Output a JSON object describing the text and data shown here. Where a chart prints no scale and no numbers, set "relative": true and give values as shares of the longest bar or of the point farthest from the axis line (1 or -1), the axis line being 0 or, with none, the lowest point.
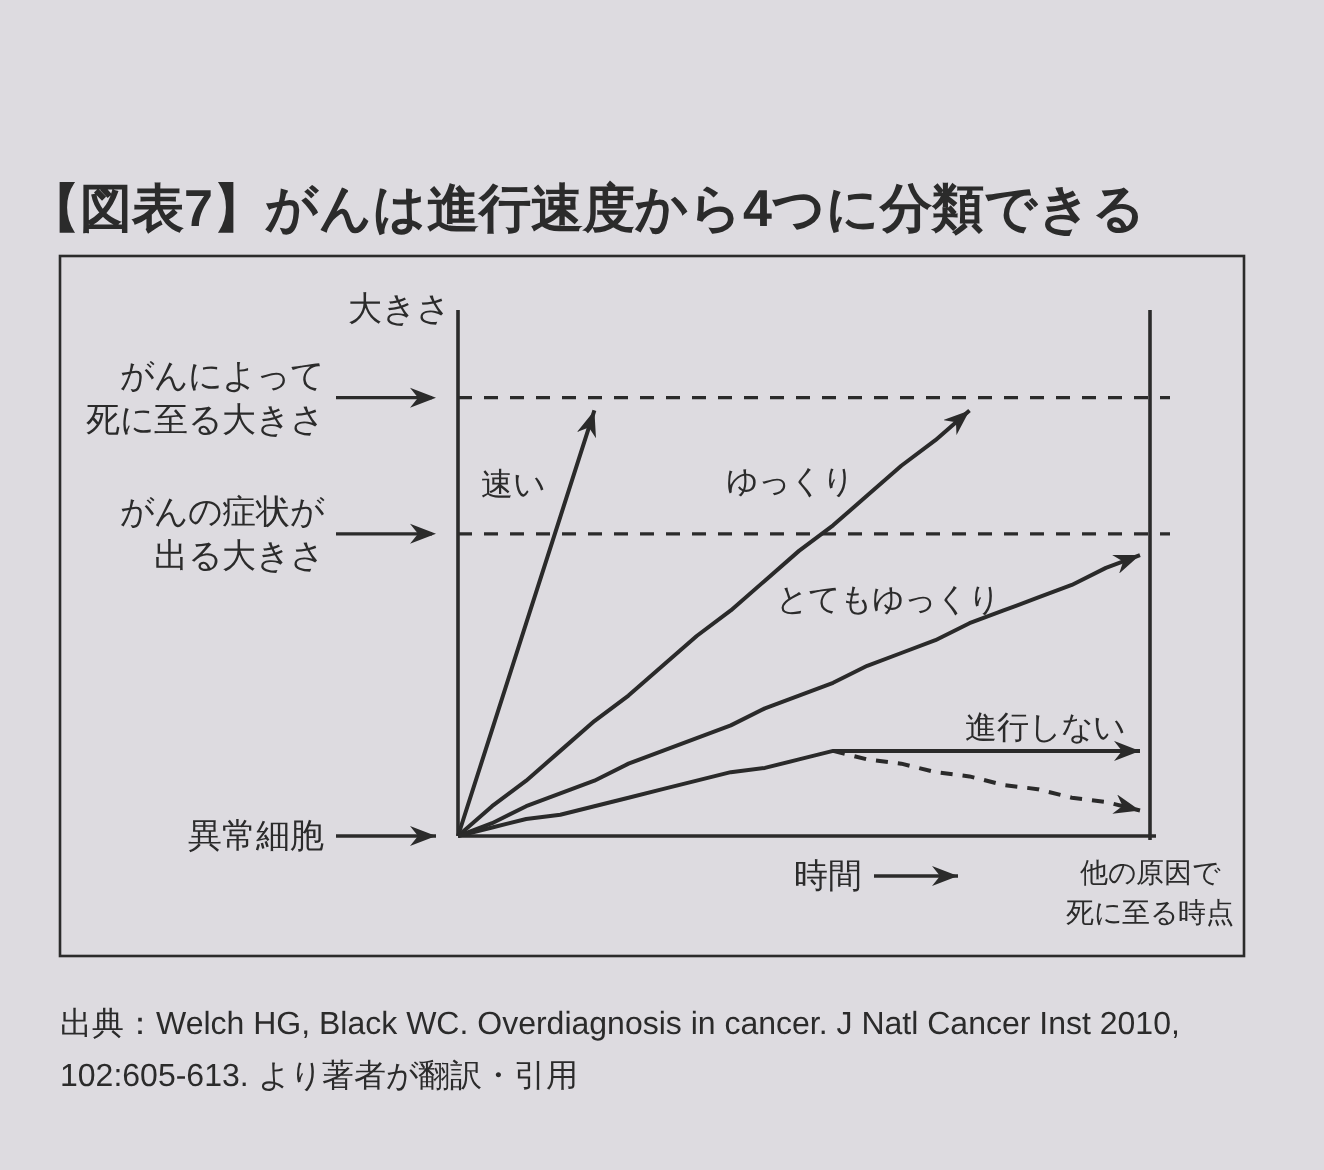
{
  "chart_data": {
    "type": "line",
    "title": "【図表7】がんは進行速度から4つに分類できる",
    "xlabel": "時間",
    "ylabel": "大きさ",
    "relative": true,
    "line_style": "solid",
    "categories": [
      null,
      null,
      null,
      null,
      null,
      null,
      null,
      null,
      null,
      null,
      null,
      null,
      null,
      null,
      null,
      null,
      null,
      null,
      null,
      null,
      null
    ],
    "series": [
      {
        "name": "速い",
        "color": "#2a2a2a",
        "values": [
          0,
          0.25,
          0.5,
          0.75,
          1,
          null,
          null,
          null,
          null,
          null,
          null,
          null,
          null,
          null,
          null,
          null,
          null,
          null,
          null,
          null,
          null
        ]
      },
      {
        "name": "ゆっくり",
        "color": "#2a2a2a",
        "values": [
          0,
          0.07,
          0.13,
          0.2,
          0.27,
          0.33,
          0.4,
          0.47,
          0.53,
          0.6,
          0.67,
          0.73,
          0.8,
          0.87,
          0.93,
          1,
          null,
          null,
          null,
          null,
          null
        ]
      },
      {
        "name": "とてもゆっくり",
        "color": "#2a2a2a",
        "values": [
          0,
          0.03,
          0.07,
          0.1,
          0.13,
          0.17,
          0.2,
          0.23,
          0.26,
          0.3,
          0.33,
          0.36,
          0.4,
          0.43,
          0.46,
          0.5,
          0.53,
          0.56,
          0.59,
          0.63,
          0.66
        ]
      },
      {
        "name": "進行しない",
        "color": "#2a2a2a",
        "values": [
          0,
          0.02,
          0.04,
          0.05,
          0.07,
          0.09,
          0.11,
          0.13,
          0.15,
          0.16,
          0.18,
          0.2,
          0.2,
          0.2,
          0.2,
          0.2,
          0.2,
          0.2,
          0.2,
          0.2,
          0.2
        ]
      },
      {
        "color": "#2a2a2a",
        "line_style": "dashed",
        "values": [
          null,
          null,
          null,
          null,
          null,
          null,
          null,
          null,
          null,
          null,
          null,
          0.2,
          0.18,
          0.17,
          0.15,
          0.14,
          0.12,
          0.11,
          0.09,
          0.08,
          0.06
        ]
      }
    ],
    "ref_lines": [
      {
        "axis": "y",
        "value": 1.03,
        "label": "がんによって死に至る大きさ",
        "line_style": "dashed"
      },
      {
        "axis": "y",
        "value": 0.71,
        "label": "がんの症状が出る大きさ",
        "line_style": "dashed"
      }
    ],
    "annotations": [
      "異常細胞",
      "他の原因で死に至る時点",
      "出典：Welch HG, Black WC. Overdiagnosis in cancer. J Natl Cancer Inst 2010, 102:605-613. より著者が翻訳・引用"
    ]
  }
}
